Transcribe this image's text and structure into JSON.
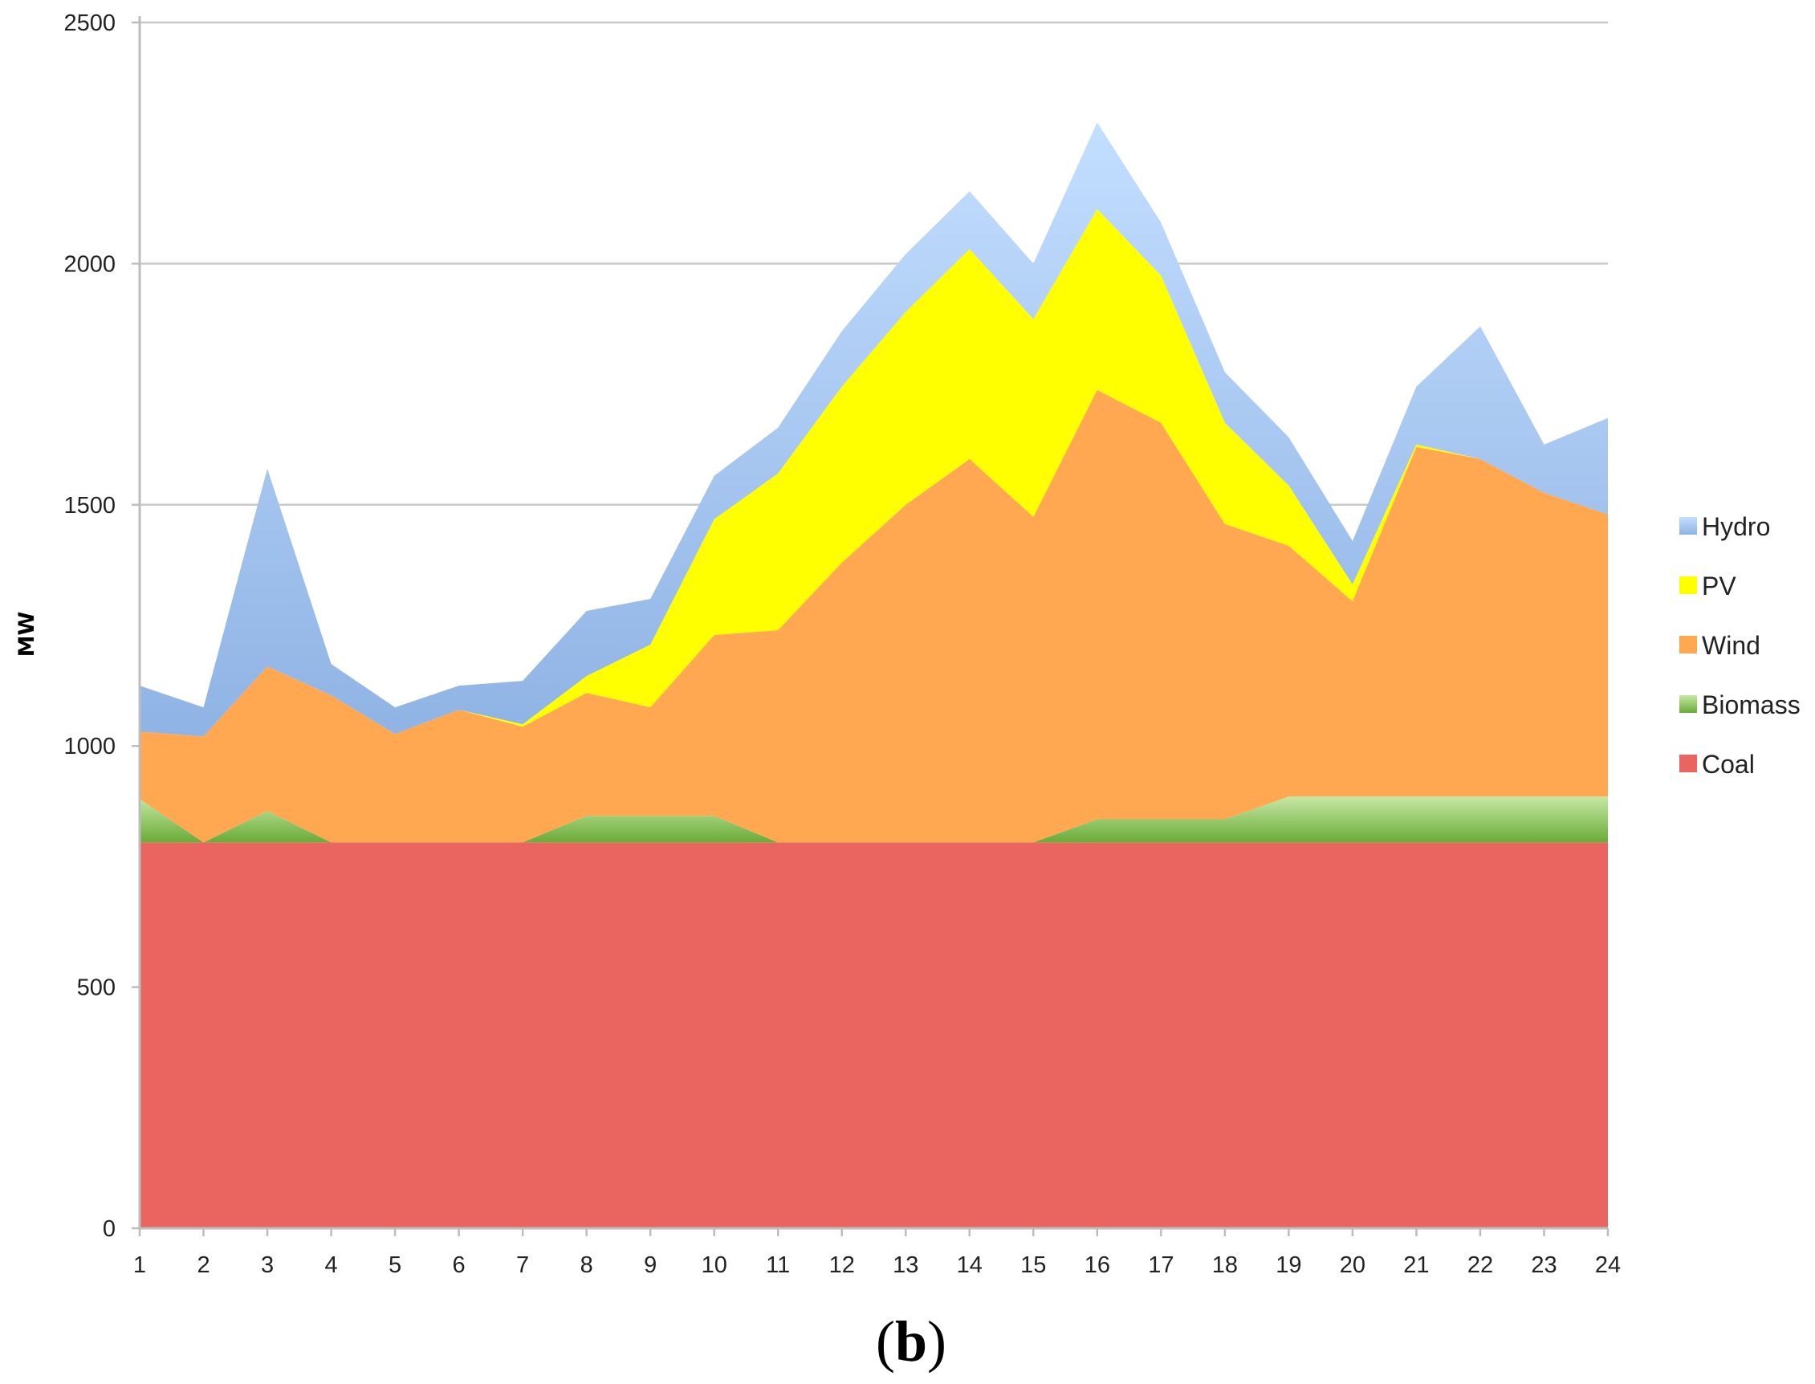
{
  "chart_data": {
    "type": "area",
    "stacked": true,
    "ylabel": "MW",
    "xlabel": "",
    "ylim": [
      0,
      2500
    ],
    "y_ticks": [
      "0",
      "500",
      "1000",
      "1500",
      "2000",
      "2500"
    ],
    "x": [
      1,
      2,
      3,
      4,
      5,
      6,
      7,
      8,
      9,
      10,
      11,
      12,
      13,
      14,
      15,
      16,
      17,
      18,
      19,
      20,
      21,
      22,
      23,
      24
    ],
    "x_ticks": [
      "1",
      "2",
      "3",
      "4",
      "5",
      "6",
      "7",
      "8",
      "9",
      "10",
      "11",
      "12",
      "13",
      "14",
      "15",
      "16",
      "17",
      "18",
      "19",
      "20",
      "21",
      "22",
      "23",
      "24"
    ],
    "grid": "horizontal",
    "legend_position": "right",
    "series": [
      {
        "name": "Coal",
        "color": "#ea6560",
        "values": [
          800,
          800,
          800,
          800,
          800,
          800,
          800,
          800,
          800,
          800,
          800,
          800,
          800,
          800,
          800,
          800,
          800,
          800,
          800,
          800,
          800,
          800,
          800,
          800
        ]
      },
      {
        "name": "Biomass",
        "color": "#8cc45a",
        "values": [
          90,
          0,
          65,
          0,
          0,
          0,
          0,
          55,
          55,
          55,
          0,
          0,
          0,
          0,
          0,
          48,
          48,
          48,
          95,
          95,
          95,
          95,
          95,
          95
        ]
      },
      {
        "name": "Wind",
        "color": "#ffa851",
        "values": [
          140,
          220,
          300,
          305,
          225,
          275,
          240,
          255,
          225,
          375,
          440,
          580,
          700,
          795,
          675,
          890,
          822,
          612,
          520,
          405,
          725,
          700,
          630,
          585
        ]
      },
      {
        "name": "PV",
        "color": "#ffff00",
        "values": [
          0,
          0,
          0,
          0,
          0,
          0,
          5,
          35,
          130,
          240,
          325,
          365,
          400,
          435,
          410,
          375,
          305,
          210,
          125,
          35,
          5,
          0,
          0,
          0
        ]
      },
      {
        "name": "Hydro",
        "color": "#9ec0ea",
        "values": [
          95,
          60,
          410,
          65,
          55,
          50,
          90,
          135,
          95,
          90,
          95,
          115,
          120,
          120,
          115,
          180,
          110,
          105,
          100,
          90,
          120,
          275,
          100,
          200
        ]
      }
    ],
    "legend_order": [
      "Hydro",
      "PV",
      "Wind",
      "Biomass",
      "Coal"
    ],
    "panel_label": {
      "open": "(",
      "letter": "b",
      "close": ")"
    }
  }
}
